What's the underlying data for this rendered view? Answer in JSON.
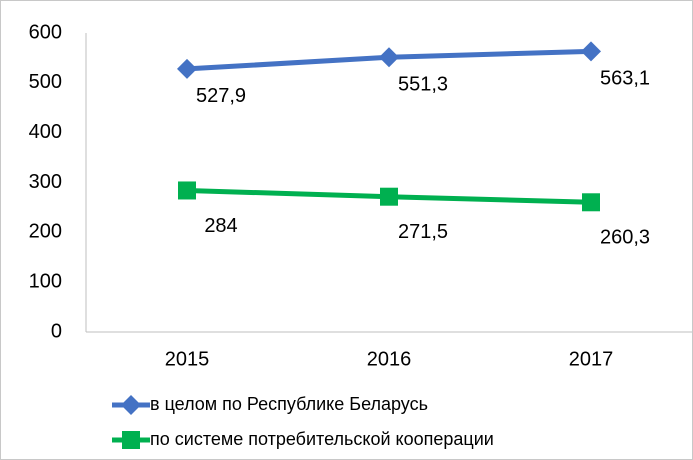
{
  "chart_data": {
    "type": "line",
    "categories": [
      "2015",
      "2016",
      "2017"
    ],
    "series": [
      {
        "name": "в целом по Республике Беларусь",
        "color": "#4472c4",
        "marker": "diamond",
        "values": [
          527.9,
          551.3,
          563.1
        ],
        "value_labels": [
          "527,9",
          "551,3",
          "563,1"
        ]
      },
      {
        "name": "по системе потребительской кооперации",
        "color": "#00b050",
        "marker": "square",
        "values": [
          284,
          271.5,
          260.3
        ],
        "value_labels": [
          "284",
          "271,5",
          "260,3"
        ]
      }
    ],
    "ylim": [
      0,
      600
    ],
    "yticks": [
      0,
      100,
      200,
      300,
      400,
      500,
      600
    ],
    "grid": false,
    "legend": "bottom-left"
  }
}
